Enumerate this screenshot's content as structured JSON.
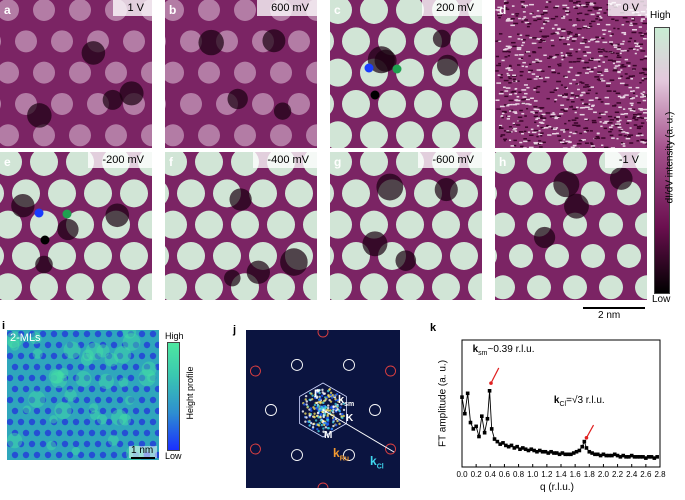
{
  "panels": [
    {
      "letter": "a",
      "bias": "1 V"
    },
    {
      "letter": "b",
      "bias": "600 mV"
    },
    {
      "letter": "c",
      "bias": "200 mV"
    },
    {
      "letter": "d",
      "bias": "0 V"
    },
    {
      "letter": "e",
      "bias": "-200 mV"
    },
    {
      "letter": "f",
      "bias": "-400 mV"
    },
    {
      "letter": "g",
      "bias": "-600 mV"
    },
    {
      "letter": "h",
      "bias": "-1 V"
    }
  ],
  "colorbar": {
    "high": "High",
    "low": "Low",
    "label": "dI/dV intensity  (a. u.)",
    "colors": [
      "#000000",
      "#6b0f4f",
      "#a6548e",
      "#e3c8dc",
      "#c9ecd3"
    ]
  },
  "scalebar_dIdV": "2 nm",
  "panel_i": {
    "letter": "i",
    "tag": "2-MLs",
    "scalebar": "1 nm",
    "colorbar_high": "High",
    "colorbar_low": "Low",
    "colorbar_label": "Height profile",
    "colors": [
      "#1a2fff",
      "#2e8fd0",
      "#3ac8b0",
      "#4ee8a0"
    ]
  },
  "panel_j": {
    "letter": "j",
    "gamma": "Γ",
    "k_point": "K",
    "m_point": "M",
    "k_sm": "k",
    "k_sm_sub": "sm",
    "k_ru": "k",
    "k_ru_sub": "Ru",
    "k_cl": "k",
    "k_cl_sub": "Cl"
  },
  "chart_data": {
    "type": "line",
    "title": "",
    "xlabel": "q (r.l.u.)",
    "ylabel": "FT amplitude (a. u.)",
    "xlim": [
      0.0,
      2.8
    ],
    "ylim": [
      0,
      1
    ],
    "xticks": [
      "0.0",
      "0.2",
      "0.4",
      "0.6",
      "0.8",
      "1.0",
      "1.2",
      "1.4",
      "1.6",
      "1.8",
      "2.0",
      "2.2",
      "2.4",
      "2.6",
      "2.8"
    ],
    "annotations": [
      {
        "text": "k",
        "sub": "sm",
        "rest": "~0.39 r.l.u.",
        "x": 0.39
      },
      {
        "text": "k",
        "sub": "Cl",
        "rest": "=√3 r.l.u.",
        "x": 1.73
      }
    ],
    "letter": "k",
    "series": [
      {
        "x": [
          0.0,
          0.04,
          0.08,
          0.12,
          0.16,
          0.2,
          0.24,
          0.28,
          0.32,
          0.36,
          0.39,
          0.42,
          0.46,
          0.5,
          0.54,
          0.58,
          0.62,
          0.66,
          0.7,
          0.74,
          0.78,
          0.82,
          0.86,
          0.9,
          0.94,
          0.98,
          1.02,
          1.06,
          1.1,
          1.14,
          1.18,
          1.22,
          1.26,
          1.3,
          1.34,
          1.38,
          1.42,
          1.46,
          1.5,
          1.54,
          1.58,
          1.62,
          1.66,
          1.7,
          1.73,
          1.76,
          1.8,
          1.84,
          1.88,
          1.92,
          1.96,
          2.0,
          2.04,
          2.08,
          2.12,
          2.16,
          2.2,
          2.24,
          2.28,
          2.32,
          2.36,
          2.4,
          2.44,
          2.48,
          2.52,
          2.56,
          2.6,
          2.64,
          2.68,
          2.72,
          2.76
        ],
        "y": [
          0.55,
          0.42,
          0.58,
          0.35,
          0.3,
          0.32,
          0.24,
          0.4,
          0.27,
          0.38,
          0.6,
          0.3,
          0.22,
          0.2,
          0.18,
          0.19,
          0.17,
          0.16,
          0.17,
          0.15,
          0.16,
          0.14,
          0.15,
          0.14,
          0.13,
          0.14,
          0.13,
          0.12,
          0.13,
          0.12,
          0.12,
          0.11,
          0.12,
          0.11,
          0.11,
          0.1,
          0.11,
          0.1,
          0.1,
          0.1,
          0.11,
          0.12,
          0.13,
          0.16,
          0.2,
          0.15,
          0.12,
          0.11,
          0.1,
          0.1,
          0.09,
          0.1,
          0.09,
          0.09,
          0.09,
          0.1,
          0.09,
          0.08,
          0.09,
          0.08,
          0.08,
          0.09,
          0.08,
          0.08,
          0.08,
          0.08,
          0.07,
          0.08,
          0.08,
          0.07,
          0.08
        ]
      }
    ]
  }
}
